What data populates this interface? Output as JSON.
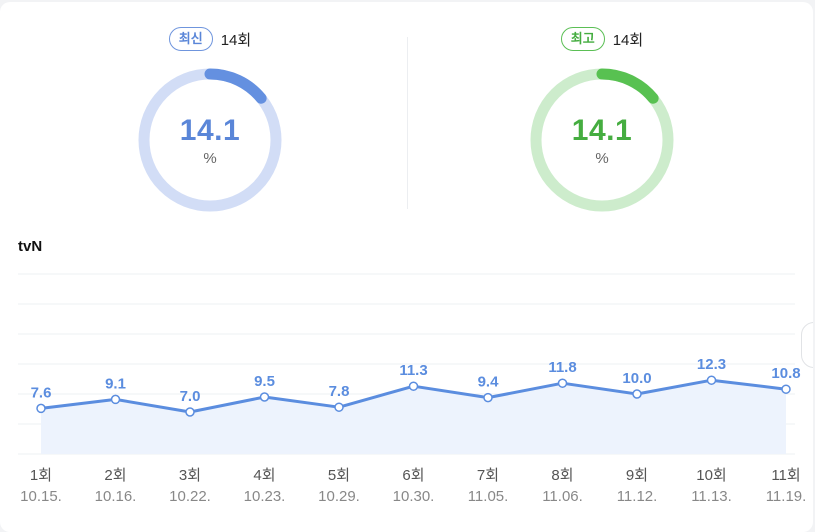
{
  "gauges": {
    "latest": {
      "badge": "최신",
      "episode": "14회",
      "value": "14.1",
      "unit": "%",
      "fraction": 0.141,
      "color": "#6490e0",
      "track": "#d2ddf6"
    },
    "best": {
      "badge": "최고",
      "episode": "14회",
      "value": "14.1",
      "unit": "%",
      "fraction": 0.141,
      "color": "#58c151",
      "track": "#cdeccc"
    }
  },
  "channel": "tvN",
  "chart_data": {
    "type": "area",
    "series": [
      {
        "values": [
          7.6,
          9.1,
          7.0,
          9.5,
          7.8,
          11.3,
          9.4,
          11.8,
          10.0,
          12.3,
          10.8
        ]
      }
    ],
    "categories": [
      "1회",
      "2회",
      "3회",
      "4회",
      "5회",
      "6회",
      "7회",
      "8회",
      "9회",
      "10회",
      "11회"
    ],
    "dates": [
      "10.15.",
      "10.16.",
      "10.22.",
      "10.23.",
      "10.29.",
      "10.30.",
      "11.05.",
      "11.06.",
      "11.12.",
      "11.13.",
      "11.19."
    ],
    "value_labels": [
      "7.6",
      "9.1",
      "7.0",
      "9.5",
      "7.8",
      "11.3",
      "9.4",
      "11.8",
      "10.0",
      "12.3",
      "10.8"
    ],
    "ylim": [
      0,
      30
    ],
    "grid": true,
    "line_color": "#5b8ddf",
    "fill_color": "#edf3fd"
  }
}
